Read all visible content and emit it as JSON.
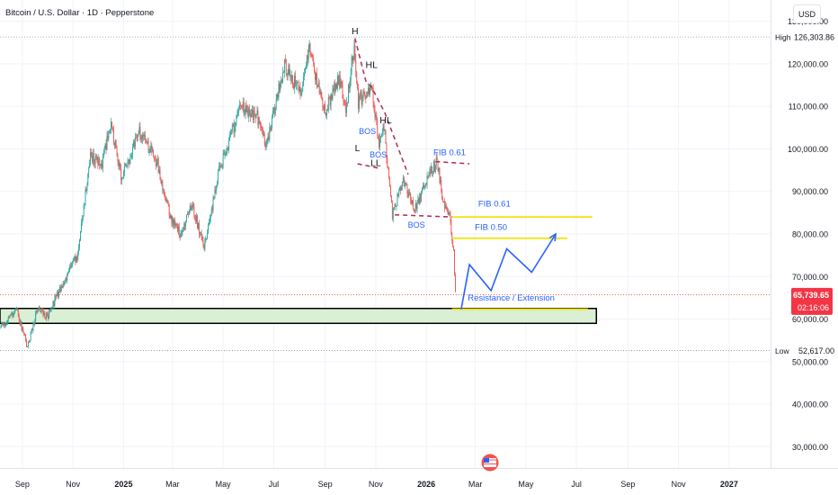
{
  "header": {
    "symbol_title": "Bitcoin / U.S. Dollar · 1D · Pepperstone"
  },
  "currency_button": {
    "label": "USD"
  },
  "price_axis": {
    "ticks": [
      {
        "value": 130000,
        "label": "130,000.00"
      },
      {
        "value": 120000,
        "label": "120,000.00"
      },
      {
        "value": 110000,
        "label": "110,000.00"
      },
      {
        "value": 100000,
        "label": "100,000.00"
      },
      {
        "value": 90000,
        "label": "90,000.00"
      },
      {
        "value": 80000,
        "label": "80,000.00"
      },
      {
        "value": 70000,
        "label": "70,000.00"
      },
      {
        "value": 60000,
        "label": "60,000.00"
      },
      {
        "value": 50000,
        "label": "50,000.00"
      },
      {
        "value": 40000,
        "label": "40,000.00"
      },
      {
        "value": 30000,
        "label": "30,000.00"
      }
    ],
    "high": {
      "tag": "High",
      "value": 126303.86,
      "label": "126,303.86"
    },
    "low": {
      "tag": "Low",
      "value": 52617,
      "label": "52,617.00"
    },
    "current": {
      "value": 65739.65,
      "label": "65,739.65",
      "countdown": "02:16:06"
    }
  },
  "time_axis": {
    "ticks": [
      {
        "date": "2024-09-01",
        "label": "Sep"
      },
      {
        "date": "2024-11-01",
        "label": "Nov"
      },
      {
        "date": "2025-01-01",
        "label": "2025",
        "bold": true
      },
      {
        "date": "2025-03-01",
        "label": "Mar"
      },
      {
        "date": "2025-05-01",
        "label": "May"
      },
      {
        "date": "2025-07-01",
        "label": "Jul"
      },
      {
        "date": "2025-09-01",
        "label": "Sep"
      },
      {
        "date": "2025-11-01",
        "label": "Nov"
      },
      {
        "date": "2026-01-01",
        "label": "2026",
        "bold": true
      },
      {
        "date": "2026-03-01",
        "label": "Mar"
      },
      {
        "date": "2026-05-01",
        "label": "May"
      },
      {
        "date": "2026-07-01",
        "label": "Jul"
      },
      {
        "date": "2026-09-01",
        "label": "Sep"
      },
      {
        "date": "2026-11-01",
        "label": "Nov"
      },
      {
        "date": "2027-01-01",
        "label": "2027",
        "bold": true
      }
    ]
  },
  "chart_data": {
    "type": "candlestick",
    "symbol": "Bitcoin / U.S. Dollar",
    "interval": "1D",
    "source": "Pepperstone",
    "xlim": [
      "2024-08-05",
      "2027-02-20"
    ],
    "ylim": [
      25000,
      135000
    ],
    "colors": {
      "up": "#26a69a",
      "down": "#ef5350",
      "annotation": "#2962ff",
      "fib": "#f2e51f",
      "dashed": "#b02a50",
      "zone_fill": "#d9f0d4"
    },
    "price_path": [
      [
        "2024-08-05",
        58000
      ],
      [
        "2024-08-25",
        62000
      ],
      [
        "2024-09-07",
        53500
      ],
      [
        "2024-09-20",
        63000
      ],
      [
        "2024-10-01",
        60500
      ],
      [
        "2024-10-14",
        66000
      ],
      [
        "2024-10-29",
        72000
      ],
      [
        "2024-11-06",
        75000
      ],
      [
        "2024-11-22",
        98500
      ],
      [
        "2024-12-05",
        96000
      ],
      [
        "2024-12-17",
        106000
      ],
      [
        "2024-12-30",
        93000
      ],
      [
        "2025-01-20",
        104000
      ],
      [
        "2025-02-10",
        97000
      ],
      [
        "2025-02-27",
        84000
      ],
      [
        "2025-03-10",
        80000
      ],
      [
        "2025-03-25",
        87000
      ],
      [
        "2025-04-08",
        76500
      ],
      [
        "2025-04-25",
        94000
      ],
      [
        "2025-05-22",
        110000
      ],
      [
        "2025-06-10",
        108000
      ],
      [
        "2025-06-22",
        101000
      ],
      [
        "2025-07-14",
        120000
      ],
      [
        "2025-08-02",
        113000
      ],
      [
        "2025-08-13",
        123000
      ],
      [
        "2025-09-01",
        108500
      ],
      [
        "2025-09-18",
        117000
      ],
      [
        "2025-09-26",
        109500
      ],
      [
        "2025-10-06",
        124500
      ],
      [
        "2025-10-11",
        111000
      ],
      [
        "2025-10-27",
        114500
      ],
      [
        "2025-11-05",
        101000
      ],
      [
        "2025-11-11",
        105500
      ],
      [
        "2025-11-21",
        84000
      ],
      [
        "2025-12-03",
        93000
      ],
      [
        "2025-12-18",
        85500
      ],
      [
        "2026-01-05",
        94000
      ],
      [
        "2026-01-14",
        97000
      ],
      [
        "2026-01-21",
        88000
      ],
      [
        "2026-01-29",
        84000
      ],
      [
        "2026-02-03",
        76000
      ],
      [
        "2026-02-05",
        66000
      ]
    ],
    "annotations": {
      "swing_labels": [
        {
          "text": "H",
          "date": "2025-10-07",
          "price": 127000
        },
        {
          "text": "HL",
          "date": "2025-10-27",
          "price": 119000
        },
        {
          "text": "HL",
          "date": "2025-11-13",
          "price": 106000
        },
        {
          "text": "L",
          "date": "2025-10-10",
          "price": 99500
        },
        {
          "text": "LL",
          "date": "2025-11-01",
          "price": 96000
        }
      ],
      "bos_labels": [
        {
          "text": "BOS",
          "date": "2025-10-22",
          "price": 103500
        },
        {
          "text": "BOS",
          "date": "2025-11-04",
          "price": 98000
        },
        {
          "text": "BOS",
          "date": "2025-12-20",
          "price": 81500
        }
      ],
      "fib_labels": [
        {
          "text": "FIB  0.61",
          "date": "2026-01-29",
          "price": 98500
        },
        {
          "text": "FIB 0.61",
          "date": "2026-03-24",
          "price": 86500
        },
        {
          "text": "FIB 0.50",
          "date": "2026-03-20",
          "price": 81000
        }
      ],
      "fib_lines": [
        {
          "price": 84000,
          "from": "2026-02-01",
          "to": "2026-07-20"
        },
        {
          "price": 79000,
          "from": "2026-02-01",
          "to": "2026-06-20"
        },
        {
          "price": 62300,
          "from": "2026-02-01",
          "to": "2026-07-15"
        }
      ],
      "dashed_lines": [
        {
          "points": [
            [
              "2025-10-07",
              126000
            ],
            [
              "2025-10-20",
              116000
            ],
            [
              "2025-10-27",
              114500
            ],
            [
              "2025-11-12",
              108500
            ],
            [
              "2025-12-10",
              94000
            ]
          ]
        },
        {
          "points": [
            [
              "2025-10-10",
              96500
            ],
            [
              "2025-11-04",
              95500
            ]
          ]
        },
        {
          "points": [
            [
              "2026-01-12",
              97000
            ],
            [
              "2026-02-22",
              96500
            ]
          ]
        },
        {
          "points": [
            [
              "2025-11-24",
              84500
            ],
            [
              "2026-02-01",
              84000
            ]
          ]
        }
      ],
      "projection": {
        "label": "Resistance / Extension",
        "label_date": "2026-02-20",
        "label_price": 64300,
        "points": [
          [
            "2026-02-12",
            62300
          ],
          [
            "2026-02-22",
            72800
          ],
          [
            "2026-03-20",
            66700
          ],
          [
            "2026-04-08",
            76500
          ],
          [
            "2026-05-08",
            71000
          ],
          [
            "2026-06-06",
            80000
          ]
        ]
      },
      "demand_zone": {
        "from": "2024-08-05",
        "to": "2026-07-25",
        "top": 62500,
        "bottom": 59000
      }
    }
  }
}
